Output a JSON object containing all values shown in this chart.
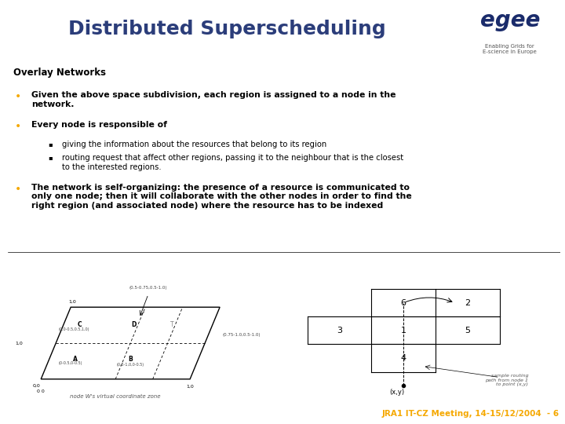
{
  "title": "Distributed Superscheduling",
  "title_color": "#2b3d7a",
  "header_bg": "#f5a800",
  "footer_bg": "#1a2b6b",
  "footer_text": "JRA1 IT-CZ Meeting, 14-15/12/2004  - 6",
  "footer_color": "#f5a800",
  "bg_color": "#ffffff",
  "section_title": "Overlay Networks",
  "bullet1": "Given the above space subdivision, each region is assigned to a node in the\nnetwork.",
  "bullet2": "Every node is responsible of",
  "sub1": "giving the information about the resources that belong to its region",
  "sub2": "routing request that affect other regions, passing it to the neighbour that is the closest\nto the interested regions.",
  "bullet3": "The network is self-organizing: the presence of a resource is communicated to\nonly one node; then it will collaborate with the other nodes in order to find the\nright region (and associated node) where the resource has to be indexed",
  "egee_text": "egee",
  "egee_sub": "Enabling Grids for\nE-science in Europe",
  "caption_left": "node W's virtual coordinate zone",
  "caption_right": "sample routing\npath from node 1\nto point (x,y)"
}
